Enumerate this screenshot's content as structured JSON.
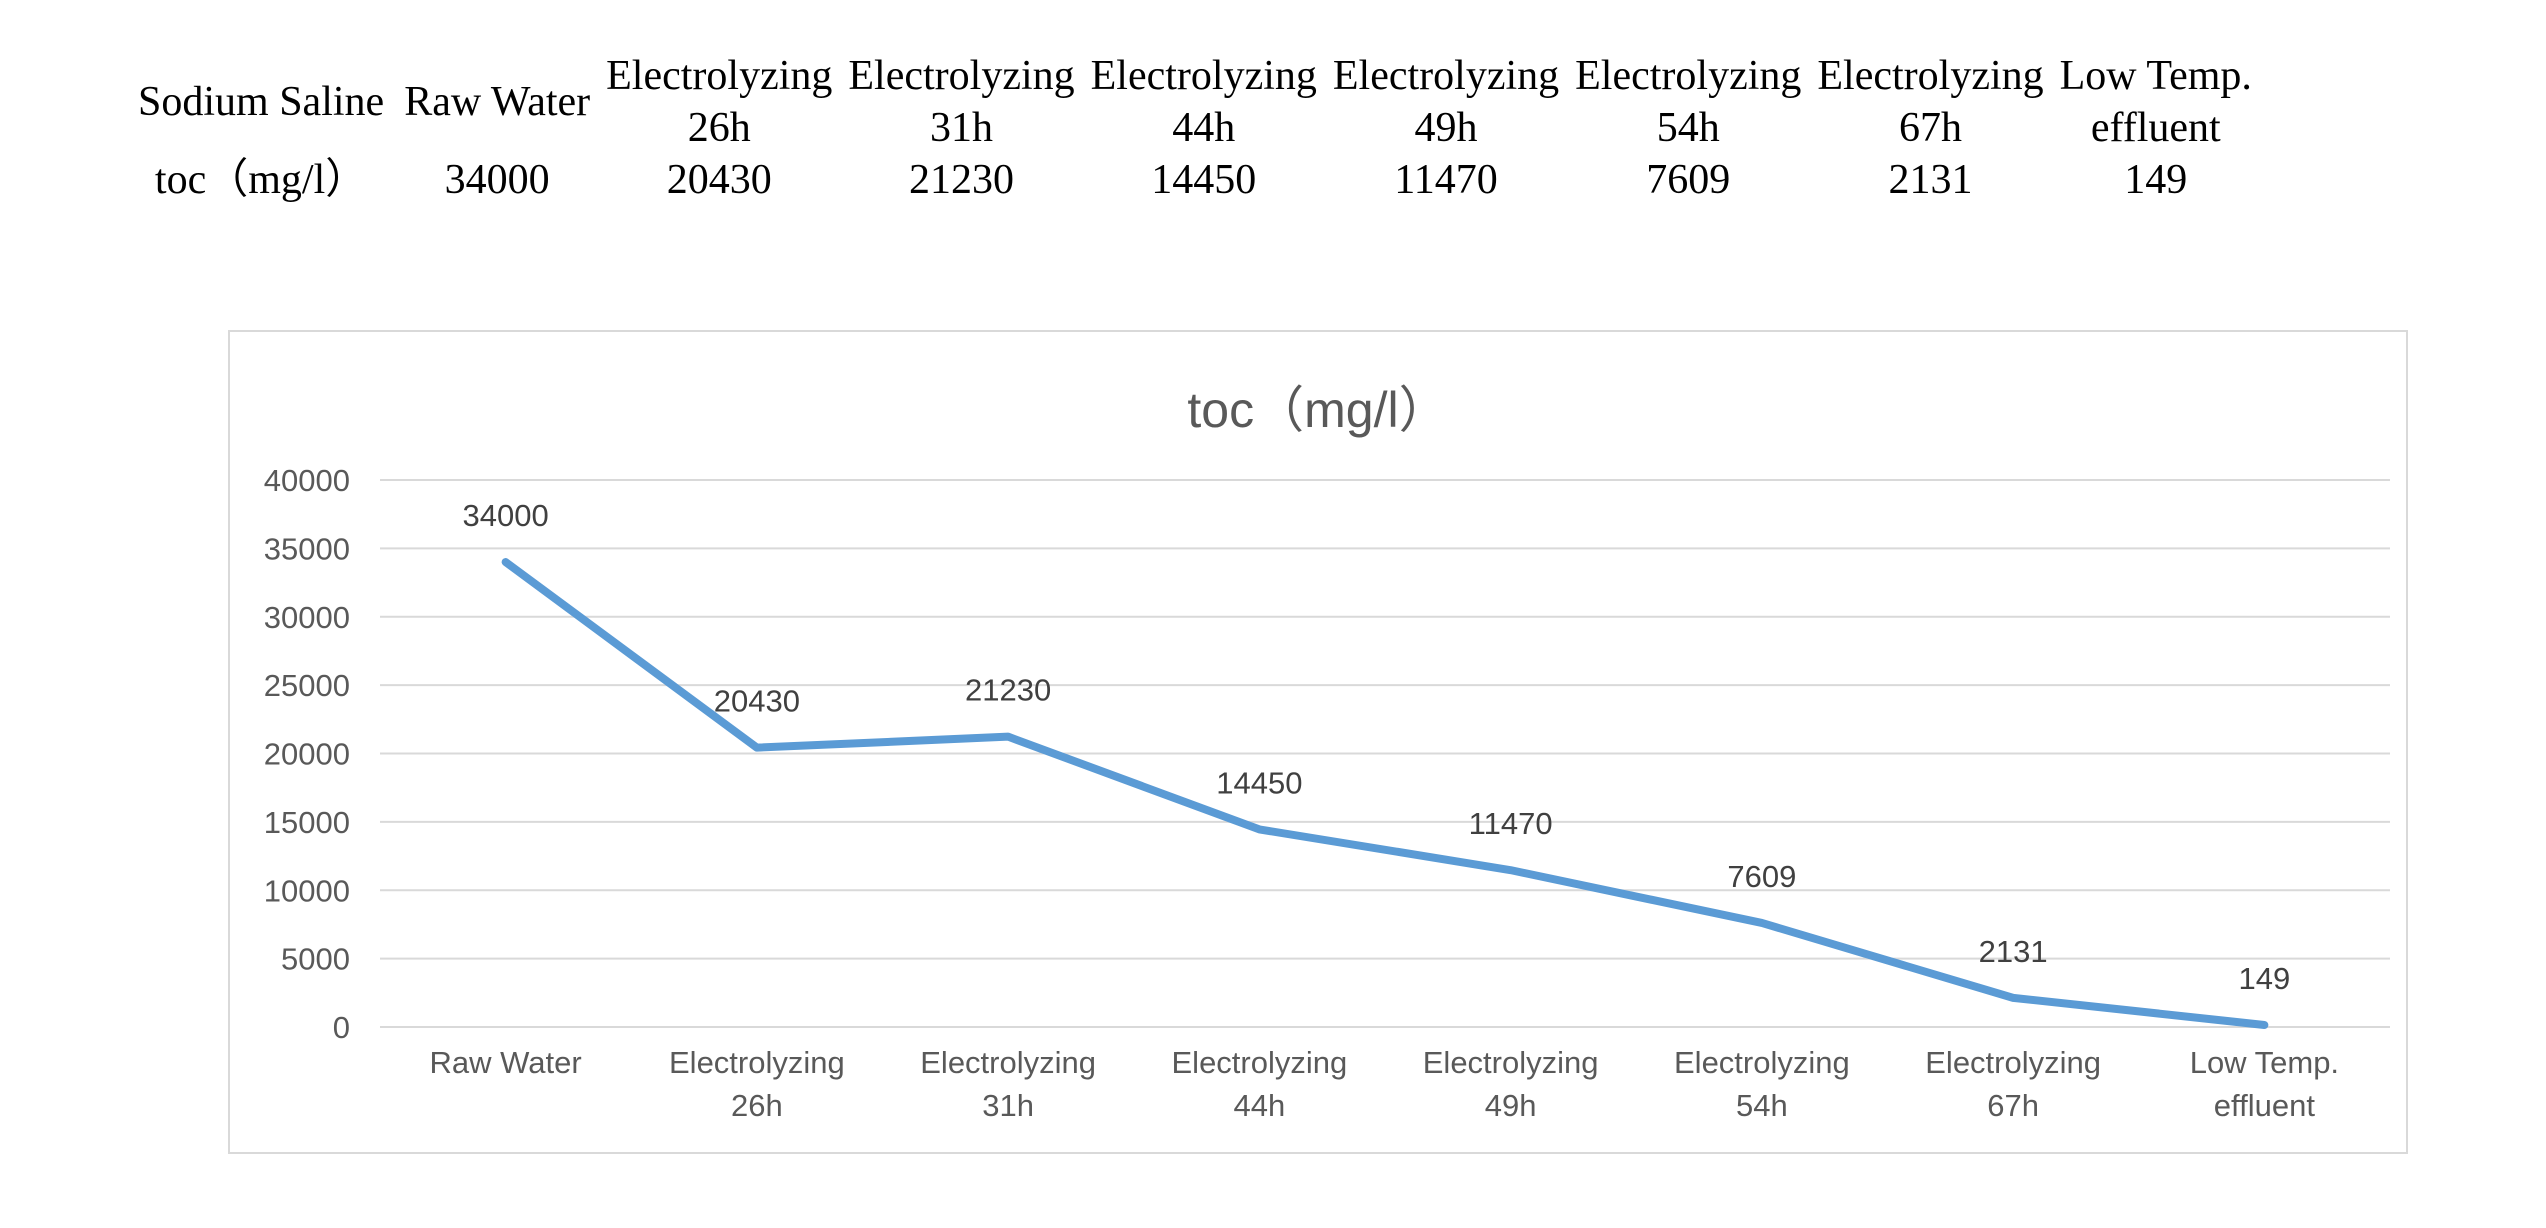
{
  "table": {
    "row1_head": "Sodium Saline",
    "row2_head": "toc（mg/l）",
    "columns": [
      "Raw Water",
      "Electrolyzing\n26h",
      "Electrolyzing\n31h",
      "Electrolyzing\n44h",
      "Electrolyzing\n49h",
      "Electrolyzing\n54h",
      "Electrolyzing\n67h",
      "Low Temp.\neffluent"
    ],
    "values": [
      "34000",
      "20430",
      "21230",
      "14450",
      "11470",
      "7609",
      "2131",
      "149"
    ]
  },
  "chart_data": {
    "type": "line",
    "title": "toc（mg/l）",
    "xlabel": "",
    "ylabel": "",
    "categories": [
      [
        "Raw Water"
      ],
      [
        "Electrolyzing",
        "26h"
      ],
      [
        "Electrolyzing",
        "31h"
      ],
      [
        "Electrolyzing",
        "44h"
      ],
      [
        "Electrolyzing",
        "49h"
      ],
      [
        "Electrolyzing",
        "54h"
      ],
      [
        "Electrolyzing",
        "67h"
      ],
      [
        "Low Temp.",
        "effluent"
      ]
    ],
    "series": [
      {
        "values": [
          34000,
          20430,
          21230,
          14450,
          11470,
          7609,
          2131,
          149
        ]
      }
    ],
    "ylim": [
      0,
      40000
    ],
    "yticks": [
      0,
      5000,
      10000,
      15000,
      20000,
      25000,
      30000,
      35000,
      40000
    ],
    "grid": true,
    "legend": "none",
    "data_labels": true,
    "colors": {
      "line": "#5b9bd5",
      "grid": "#d9d9d9",
      "text": "#595959"
    }
  }
}
